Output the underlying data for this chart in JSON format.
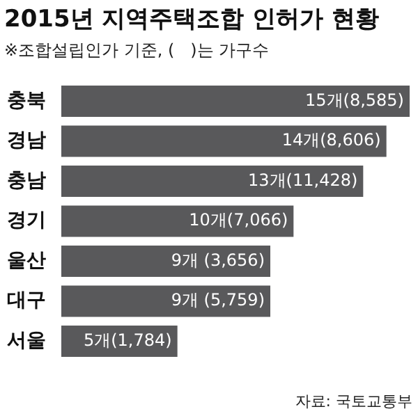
{
  "chart_data": {
    "type": "bar",
    "orientation": "horizontal",
    "title": "2015년 지역주택조합 인허가 현황",
    "subtitle": "※조합설립인가 기준, (   )는 가구수",
    "categories": [
      "충북",
      "경남",
      "충남",
      "경기",
      "울산",
      "대구",
      "서울"
    ],
    "values": [
      15,
      14,
      13,
      10,
      9,
      9,
      5
    ],
    "value_labels": [
      "15개(8,585)",
      "14개(8,606)",
      "13개(11,428)",
      "10개(7,066)",
      "9개 (3,656)",
      "9개 (5,759)",
      "5개(1,784)"
    ],
    "color": "#59595b",
    "annotations": [
      "자료: 국토교통부"
    ]
  }
}
